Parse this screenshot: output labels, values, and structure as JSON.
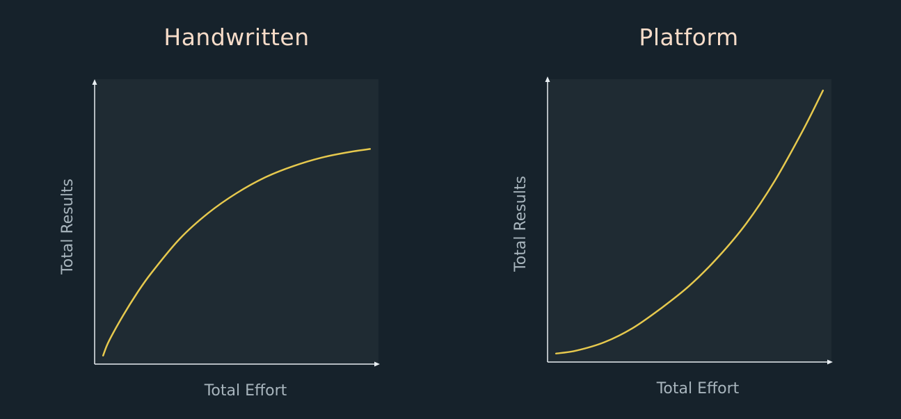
{
  "colors": {
    "background": "#16222b",
    "plot_area": "#1f2b33",
    "title": "#f6dcc9",
    "axis": "#e8eef2",
    "axis_label": "#a8b5bd",
    "curve": "#e6c94e"
  },
  "chart_data": [
    {
      "type": "line",
      "title": "Handwritten",
      "xlabel": "Total Effort",
      "ylabel": "Total Results",
      "grid": false,
      "ticks": false,
      "xlim": [
        0,
        1
      ],
      "ylim": [
        0,
        1
      ],
      "series": [
        {
          "x": [
            0.03,
            0.05,
            0.1,
            0.15,
            0.2,
            0.3,
            0.4,
            0.5,
            0.6,
            0.7,
            0.8,
            0.9,
            0.97
          ],
          "y": [
            0.03,
            0.08,
            0.17,
            0.25,
            0.32,
            0.44,
            0.53,
            0.6,
            0.655,
            0.695,
            0.725,
            0.745,
            0.755
          ]
        }
      ]
    },
    {
      "type": "line",
      "title": "Platform",
      "xlabel": "Total Effort",
      "ylabel": "Total Results",
      "grid": false,
      "ticks": false,
      "xlim": [
        0,
        1
      ],
      "ylim": [
        0,
        1
      ],
      "series": [
        {
          "x": [
            0.03,
            0.1,
            0.2,
            0.3,
            0.4,
            0.5,
            0.6,
            0.7,
            0.8,
            0.9,
            0.97
          ],
          "y": [
            0.03,
            0.04,
            0.07,
            0.12,
            0.19,
            0.27,
            0.37,
            0.49,
            0.64,
            0.82,
            0.96
          ]
        }
      ]
    }
  ]
}
